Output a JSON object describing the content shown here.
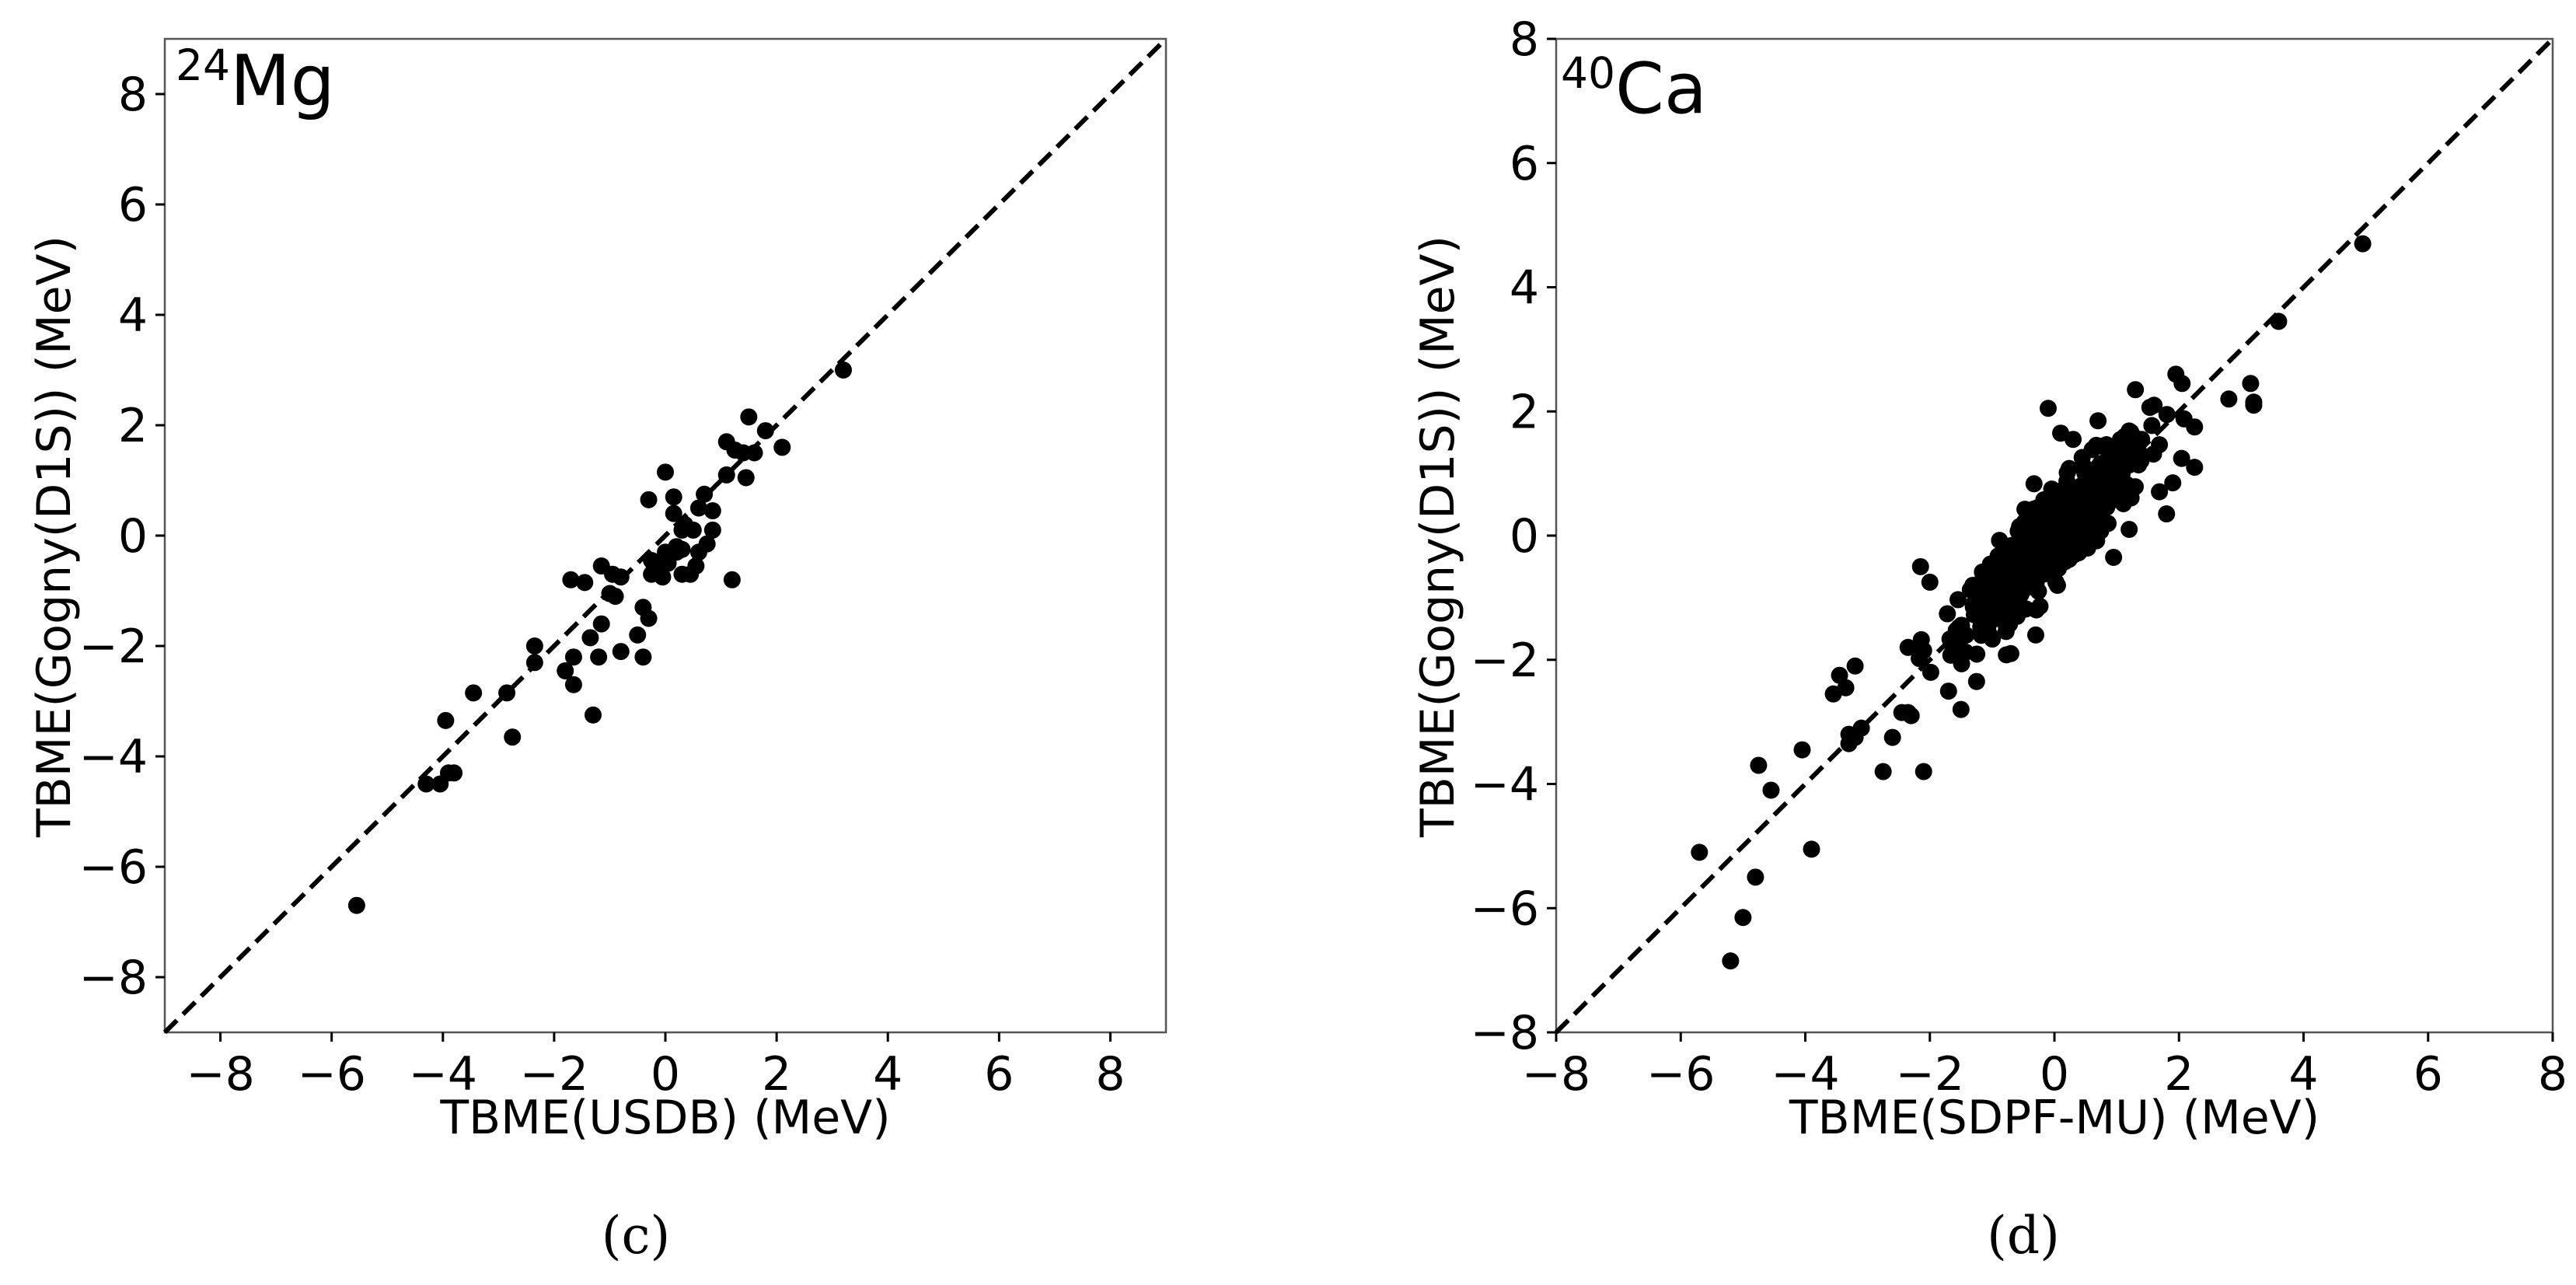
{
  "chart_data": [
    {
      "type": "scatter",
      "panel": "(c)",
      "nucleus": {
        "mass": "24",
        "symbol": "Mg"
      },
      "xlabel": "TBME(USDB) (MeV)",
      "ylabel": "TBME(Gogny(D1S)) (MeV)",
      "xlim": [
        -9,
        9
      ],
      "ylim": [
        -9,
        9
      ],
      "ticks": [
        -8,
        -6,
        -4,
        -2,
        0,
        2,
        4,
        6,
        8
      ],
      "tick_labels": [
        "−8",
        "−6",
        "−4",
        "−2",
        "0",
        "2",
        "4",
        "6",
        "8"
      ],
      "reference_line": "y = x",
      "points": [
        [
          -5.55,
          -6.7
        ],
        [
          -4.3,
          -4.5
        ],
        [
          -4.05,
          -4.5
        ],
        [
          -3.9,
          -4.3
        ],
        [
          -3.8,
          -4.3
        ],
        [
          -3.95,
          -3.35
        ],
        [
          -3.45,
          -2.85
        ],
        [
          -2.75,
          -3.65
        ],
        [
          -2.85,
          -2.85
        ],
        [
          -2.35,
          -2.3
        ],
        [
          -2.35,
          -2.0
        ],
        [
          -1.8,
          -2.45
        ],
        [
          -1.65,
          -2.7
        ],
        [
          -1.3,
          -3.25
        ],
        [
          -1.65,
          -2.2
        ],
        [
          -1.35,
          -1.85
        ],
        [
          -1.2,
          -2.2
        ],
        [
          -1.15,
          -1.6
        ],
        [
          -0.8,
          -2.1
        ],
        [
          -0.5,
          -1.8
        ],
        [
          -0.4,
          -2.2
        ],
        [
          -0.3,
          -1.5
        ],
        [
          -0.4,
          -1.3
        ],
        [
          -0.9,
          -1.1
        ],
        [
          -1.0,
          -1.05
        ],
        [
          -1.45,
          -0.85
        ],
        [
          -1.7,
          -0.8
        ],
        [
          -1.15,
          -0.55
        ],
        [
          -0.95,
          -0.7
        ],
        [
          -0.8,
          -0.75
        ],
        [
          -0.25,
          -0.7
        ],
        [
          -0.2,
          -0.6
        ],
        [
          -0.25,
          -0.45
        ],
        [
          -0.05,
          -0.75
        ],
        [
          -0.1,
          -0.5
        ],
        [
          0.05,
          -0.5
        ],
        [
          0.0,
          -0.3
        ],
        [
          0.1,
          -0.3
        ],
        [
          0.2,
          -0.3
        ],
        [
          0.3,
          -0.25
        ],
        [
          0.2,
          -0.2
        ],
        [
          0.3,
          -0.7
        ],
        [
          0.45,
          -0.7
        ],
        [
          0.55,
          -0.55
        ],
        [
          0.6,
          -0.3
        ],
        [
          0.75,
          -0.15
        ],
        [
          0.85,
          0.1
        ],
        [
          0.5,
          0.1
        ],
        [
          0.3,
          0.1
        ],
        [
          0.35,
          0.2
        ],
        [
          0.15,
          0.4
        ],
        [
          0.6,
          0.5
        ],
        [
          0.85,
          0.45
        ],
        [
          0.7,
          0.75
        ],
        [
          0.15,
          0.7
        ],
        [
          -0.3,
          0.65
        ],
        [
          0.0,
          1.15
        ],
        [
          1.2,
          -0.8
        ],
        [
          1.1,
          1.1
        ],
        [
          1.25,
          1.55
        ],
        [
          1.1,
          1.7
        ],
        [
          1.4,
          1.5
        ],
        [
          1.6,
          1.5
        ],
        [
          1.45,
          1.05
        ],
        [
          1.5,
          2.15
        ],
        [
          1.8,
          1.9
        ],
        [
          2.1,
          1.6
        ],
        [
          3.2,
          3.0
        ]
      ]
    },
    {
      "type": "scatter",
      "panel": "(d)",
      "nucleus": {
        "mass": "40",
        "symbol": "Ca"
      },
      "xlabel": "TBME(SDPF-MU) (MeV)",
      "ylabel": "TBME(Gogny(D1S)) (MeV)",
      "xlim": [
        -8,
        8
      ],
      "ylim": [
        -8,
        8
      ],
      "ticks": [
        -8,
        -6,
        -4,
        -2,
        0,
        2,
        4,
        6,
        8
      ],
      "tick_labels": [
        "−8",
        "−6",
        "−4",
        "−2",
        "0",
        "2",
        "4",
        "6",
        "8"
      ],
      "reference_line": "y = x",
      "points": [
        [
          -5.7,
          -5.1
        ],
        [
          -5.2,
          -6.85
        ],
        [
          -5.0,
          -6.15
        ],
        [
          -4.8,
          -5.5
        ],
        [
          -4.75,
          -3.7
        ],
        [
          -4.55,
          -4.1
        ],
        [
          -4.05,
          -3.45
        ],
        [
          -3.9,
          -5.05
        ],
        [
          -3.55,
          -2.55
        ],
        [
          -3.45,
          -2.25
        ],
        [
          -3.35,
          -2.45
        ],
        [
          -3.3,
          -3.2
        ],
        [
          -3.3,
          -3.35
        ],
        [
          -3.2,
          -3.25
        ],
        [
          -3.1,
          -3.1
        ],
        [
          -3.2,
          -2.1
        ],
        [
          -2.75,
          -3.8
        ],
        [
          -2.6,
          -3.25
        ],
        [
          -2.45,
          -2.85
        ],
        [
          -2.35,
          -2.85
        ],
        [
          -2.3,
          -2.9
        ],
        [
          -2.1,
          -3.8
        ],
        [
          -2.15,
          -0.5
        ],
        [
          -2.0,
          -0.75
        ],
        [
          -2.35,
          -1.8
        ],
        [
          -2.1,
          -1.85
        ],
        [
          -1.5,
          -2.8
        ],
        [
          -1.25,
          -2.35
        ],
        [
          -0.7,
          -1.9
        ],
        [
          -0.6,
          -1.3
        ],
        [
          -0.3,
          -1.6
        ],
        [
          -0.1,
          2.05
        ],
        [
          0.1,
          1.65
        ],
        [
          0.3,
          1.55
        ],
        [
          0.7,
          1.85
        ],
        [
          1.3,
          2.35
        ],
        [
          1.6,
          2.1
        ],
        [
          1.95,
          2.6
        ],
        [
          2.05,
          2.45
        ],
        [
          2.25,
          1.75
        ],
        [
          2.25,
          1.1
        ],
        [
          1.9,
          0.85
        ],
        [
          1.8,
          0.35
        ],
        [
          1.4,
          1.55
        ],
        [
          1.2,
          0.1
        ],
        [
          0.95,
          -0.35
        ],
        [
          2.8,
          2.2
        ],
        [
          3.15,
          2.45
        ],
        [
          3.2,
          2.15
        ],
        [
          3.2,
          2.1
        ],
        [
          3.6,
          3.45
        ],
        [
          4.95,
          4.7
        ]
      ],
      "cluster": {
        "center": [
          0.0,
          0.0
        ],
        "slope": 0.95,
        "spread_x": 0.75,
        "spread_y": 0.35,
        "count": 520
      }
    }
  ],
  "captions": [
    "(c)",
    "(d)"
  ]
}
